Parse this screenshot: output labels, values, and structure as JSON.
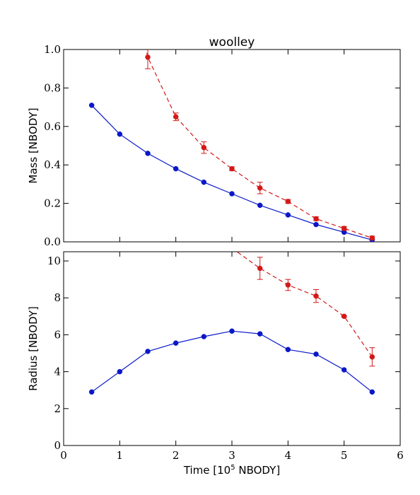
{
  "chart_data": {
    "type": "line",
    "title": "woolley",
    "xlabel": "Time [10",
    "xlabel_sup": "5",
    "xlabel_tail": " NBODY]",
    "xlim": [
      0,
      6
    ],
    "xticks": [
      "0",
      "1",
      "2",
      "3",
      "4",
      "5",
      "6"
    ],
    "colors": {
      "blue": "#0a18c8",
      "red": "#d41818"
    },
    "panels": [
      {
        "ylabel": "Mass [NBODY]",
        "ylim": [
          0.0,
          1.0
        ],
        "yticks": [
          "0.0",
          "0.2",
          "0.4",
          "0.6",
          "0.8",
          "1.0"
        ],
        "series": [
          {
            "style": "solid",
            "color": "#0a18c8",
            "x": [
              0.5,
              1.0,
              1.5,
              2.0,
              2.5,
              3.0,
              3.5,
              4.0,
              4.5,
              5.0,
              5.5
            ],
            "y": [
              0.71,
              0.56,
              0.46,
              0.38,
              0.31,
              0.25,
              0.19,
              0.14,
              0.09,
              0.05,
              0.01
            ]
          },
          {
            "style": "dashed",
            "color": "#d41818",
            "x": [
              1.5,
              2.0,
              2.5,
              3.0,
              3.5,
              4.0,
              4.5,
              5.0,
              5.5
            ],
            "y": [
              0.96,
              0.65,
              0.49,
              0.38,
              0.28,
              0.21,
              0.12,
              0.07,
              0.02
            ],
            "err": [
              0.06,
              0.02,
              0.03,
              0.01,
              0.03,
              0.01,
              0.01,
              0.01,
              0.01
            ],
            "line_start": [
              1.4,
              1.09
            ]
          }
        ]
      },
      {
        "ylabel": "Radius [NBODY]",
        "ylim": [
          0,
          10.5
        ],
        "yticks": [
          "0",
          "2",
          "4",
          "6",
          "8",
          "10"
        ],
        "series": [
          {
            "style": "solid",
            "color": "#0a18c8",
            "x": [
              0.5,
              1.0,
              1.5,
              2.0,
              2.5,
              3.0,
              3.5,
              4.0,
              4.5,
              5.0,
              5.5
            ],
            "y": [
              2.9,
              4.0,
              5.1,
              5.55,
              5.9,
              6.2,
              6.05,
              5.2,
              4.95,
              4.1,
              2.9
            ]
          },
          {
            "style": "dashed",
            "color": "#d41818",
            "x": [
              3.5,
              4.0,
              4.5,
              5.0,
              5.5
            ],
            "y": [
              9.6,
              8.7,
              8.1,
              7.0,
              4.8
            ],
            "err": [
              0.6,
              0.3,
              0.35,
              0.05,
              0.5
            ],
            "line_start": [
              3.0,
              10.7
            ]
          }
        ]
      }
    ]
  }
}
